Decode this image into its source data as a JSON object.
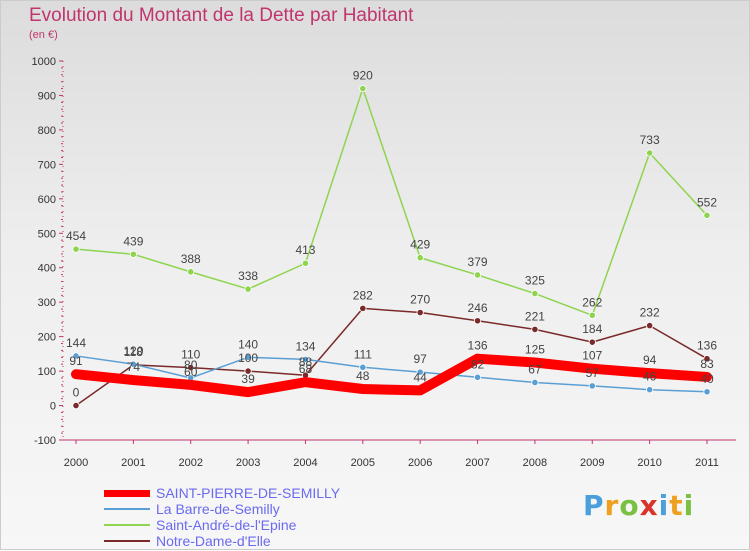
{
  "header": {
    "title": "Evolution du Montant de la Dette par Habitant",
    "unit": "(en €)"
  },
  "logo": {
    "text": "Proxiti"
  },
  "colors": {
    "title": "#c0356e",
    "legend_text": "#6a6af0"
  },
  "chart_data": {
    "type": "line",
    "title": "Evolution du Montant de la Dette par Habitant",
    "subtitle": "(en €)",
    "xlabel": "",
    "ylabel": "",
    "ylim": [
      -100,
      1000
    ],
    "yticks": [
      -100,
      0,
      100,
      200,
      300,
      400,
      500,
      600,
      700,
      800,
      900,
      1000
    ],
    "grid": false,
    "legend_position": "bottom",
    "categories": [
      "2000",
      "2001",
      "2002",
      "2003",
      "2004",
      "2005",
      "2006",
      "2007",
      "2008",
      "2009",
      "2010",
      "2011"
    ],
    "series": [
      {
        "name": "SAINT-PIERRE-DE-SEMILLY",
        "color": "#ff0000",
        "values": [
          91,
          74,
          60,
          39,
          68,
          48,
          44,
          136,
          125,
          107,
          94,
          83
        ],
        "labels": [
          "91",
          "74",
          "60",
          "39",
          "68",
          "48",
          "44",
          "136",
          "125",
          "107",
          "94",
          "83"
        ]
      },
      {
        "name": "La Barre-de-Semilly",
        "color": "#5a9fd4",
        "values": [
          144,
          120,
          80,
          140,
          134,
          111,
          97,
          82,
          67,
          57,
          46,
          40
        ],
        "labels": [
          "144",
          "120",
          "80",
          "140",
          "134",
          "111",
          "97",
          "82",
          "67",
          "57",
          "46",
          "40"
        ]
      },
      {
        "name": "Saint-André-de-l'Epine",
        "color": "#8ed44e",
        "values": [
          454,
          439,
          388,
          338,
          413,
          920,
          429,
          379,
          325,
          262,
          733,
          552
        ],
        "labels": [
          "454",
          "439",
          "388",
          "338",
          "413",
          "920",
          "429",
          "379",
          "325",
          "262",
          "733",
          "552"
        ]
      },
      {
        "name": "Notre-Dame-d'Elle",
        "color": "#7a2a2a",
        "values": [
          0,
          118,
          110,
          100,
          88,
          282,
          270,
          246,
          221,
          184,
          232,
          136
        ],
        "labels": [
          "0",
          "118",
          "110",
          "100",
          "88",
          "282",
          "270",
          "246",
          "221",
          "184",
          "232",
          "136"
        ]
      }
    ]
  }
}
